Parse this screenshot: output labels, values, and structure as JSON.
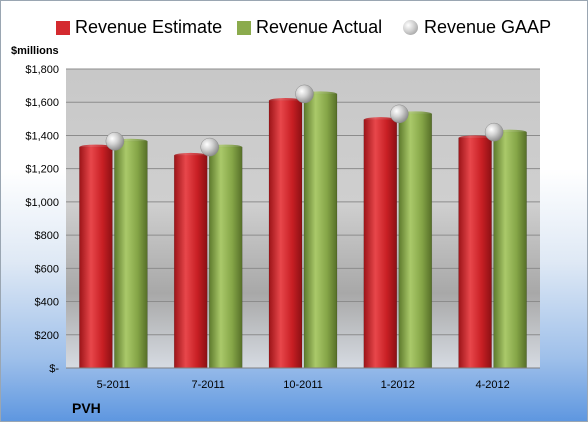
{
  "chart_data": {
    "type": "bar",
    "company": "PVH",
    "y_unit_label": "$millions",
    "categories": [
      "5-2011",
      "7-2011",
      "10-2011",
      "1-2012",
      "4-2012"
    ],
    "series": [
      {
        "name": "Revenue Estimate",
        "color": "#d42a2f",
        "values": [
          1330,
          1280,
          1610,
          1495,
          1385
        ]
      },
      {
        "name": "Revenue Actual",
        "color": "#8bab4d",
        "values": [
          1365,
          1330,
          1650,
          1530,
          1420
        ]
      }
    ],
    "markers": {
      "name": "Revenue GAAP",
      "color": "#b8b8b8",
      "values": [
        1365,
        1330,
        1650,
        1530,
        1420
      ]
    },
    "ylim": [
      0,
      1800
    ],
    "yticks": [
      0,
      200,
      400,
      600,
      800,
      1000,
      1200,
      1400,
      1600,
      1800
    ],
    "ytick_labels": [
      "$-",
      "$200",
      "$400",
      "$600",
      "$800",
      "$1,000",
      "$1,200",
      "$1,400",
      "$1,600",
      "$1,800"
    ],
    "grid": true,
    "legend_position": "top"
  }
}
